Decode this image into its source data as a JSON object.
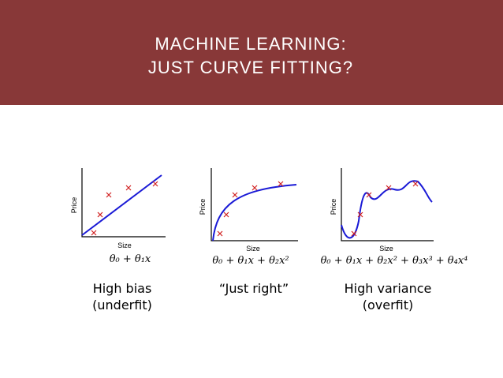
{
  "header": {
    "title_lines": [
      "MACHINE LEARNING:",
      "JUST CURVE FITTING?"
    ]
  },
  "panels": [
    {
      "y_label": "Price",
      "x_label": "Size",
      "formula": "θ₀ + θ₁x",
      "caption_lines": [
        "High bias",
        "(underfit)"
      ]
    },
    {
      "y_label": "Price",
      "x_label": "Size",
      "formula": "θ₀ + θ₁x + θ₂x²",
      "caption_lines": [
        "“Just right”"
      ]
    },
    {
      "y_label": "Price",
      "x_label": "Size",
      "formula": "θ₀ + θ₁x + θ₂x² + θ₃x³ + θ₄x⁴",
      "caption_lines": [
        "High variance",
        "(overfit)"
      ]
    }
  ]
}
